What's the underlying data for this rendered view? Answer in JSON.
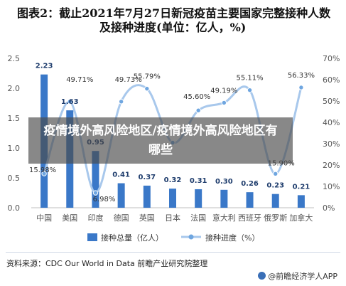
{
  "page": {
    "title_line1": "图表2：截止2021年7月27日新冠疫苗主要国家完整接种人数",
    "title_line2": "及接种进度(单位：亿人，%)",
    "overlay_text": "疫情境外高风险地区/疫情境外高风险地区有哪些",
    "source": "资料来源：CDC Our World in Data 前瞻产业研究院整理",
    "brand": "@前瞻经济学人APP"
  },
  "colors": {
    "bar": "#3a78c8",
    "line": "#a8c8ec",
    "marker": "#6fa6e0",
    "axis_text": "#555555",
    "grid": "#d9d9d9"
  },
  "chart_data": {
    "type": "bar",
    "categories": [
      "中国",
      "美国",
      "印度",
      "德国",
      "英国",
      "日本",
      "法国",
      "意大利",
      "西班牙",
      "俄罗斯",
      "加拿大"
    ],
    "series": [
      {
        "name": "接种总量（亿人）",
        "type": "bar",
        "axis": "left",
        "values": [
          2.23,
          1.63,
          0.95,
          0.41,
          0.37,
          0.32,
          0.31,
          0.3,
          0.26,
          0.23,
          0.21
        ],
        "labels": [
          "2.23",
          "1.63",
          "0.95",
          "0.41",
          "0.37",
          "0.32",
          "0.31",
          "0.30",
          "0.26",
          "0.23",
          "0.21"
        ]
      },
      {
        "name": "接种进度（%）",
        "type": "line",
        "axis": "right",
        "values": [
          15.98,
          49.71,
          6.98,
          49.73,
          55.79,
          30.5,
          45.6,
          49.19,
          55.11,
          15.9,
          56.33
        ],
        "labels": [
          "15.98%",
          "49.71%",
          "6.98%",
          "49.73%",
          "55.79%",
          "",
          "45.60%",
          "49.19%",
          "55.11%",
          "15.90%",
          "56.33%"
        ]
      }
    ],
    "y_left": {
      "min": 0,
      "max": 2.5,
      "ticks": [
        "0.0",
        "0.5",
        "1.0",
        "1.5",
        "2.0",
        "2.5"
      ]
    },
    "y_right": {
      "min": 0,
      "max": 70,
      "ticks": [
        "0%",
        "10%",
        "20%",
        "30%",
        "40%",
        "50%",
        "60%",
        "70%"
      ]
    },
    "legend_position": "bottom-center",
    "grid": false
  }
}
